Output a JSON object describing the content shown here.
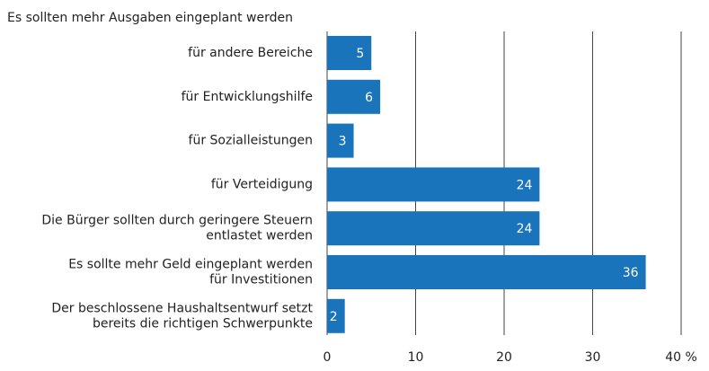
{
  "chart_data": {
    "type": "bar",
    "orientation": "horizontal",
    "title": "Es sollten mehr Ausgaben eingeplant werden",
    "categories": [
      "für andere Bereiche",
      "für Entwicklungshilfe",
      "für Sozialleistungen",
      "für Verteidigung",
      "Die Bürger sollten durch geringere Steuern\nentlastet werden",
      "Es sollte mehr Geld eingeplant werden\nfür Investitionen",
      "Der beschlossene Haushaltsentwurf setzt\nbereits die richtigen Schwerpunkte"
    ],
    "values": [
      5,
      6,
      3,
      24,
      24,
      36,
      2
    ],
    "color": "#1a74bb",
    "xlim": [
      0,
      40
    ],
    "xticks": [
      0,
      10,
      20,
      30,
      {
        "value": 40,
        "label": "40 %"
      }
    ],
    "grid": true
  }
}
